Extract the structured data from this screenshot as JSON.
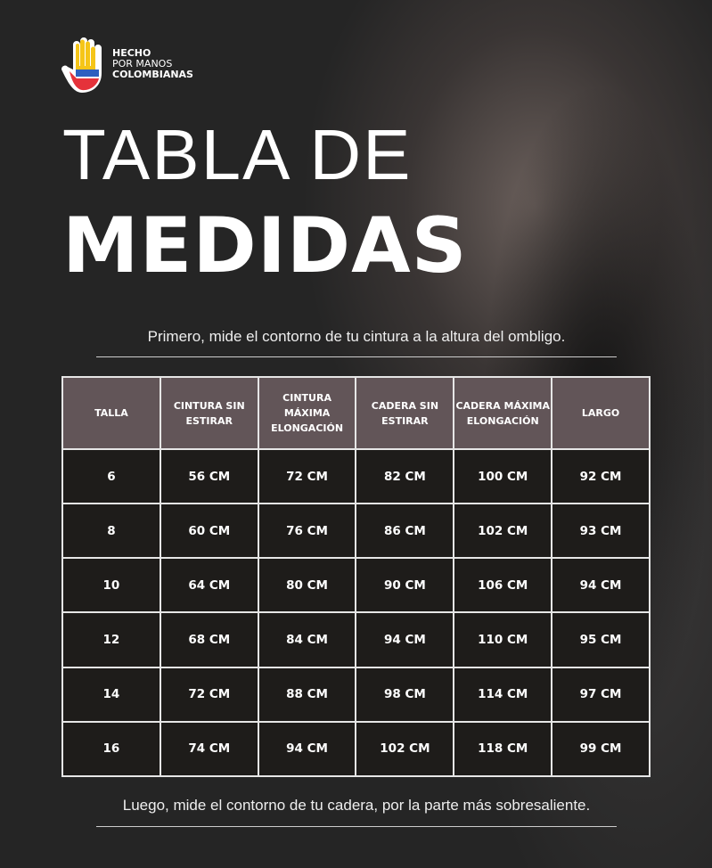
{
  "logo": {
    "line1": "HECHO",
    "line2": "POR MANOS",
    "line3": "COLOMBIANAS"
  },
  "title": {
    "line1": "TABLA DE",
    "line2": "MEDIDAS"
  },
  "note_top": "Primero, mide  el contorno de tu cintura a la altura del ombligo.",
  "note_bottom": "Luego, mide el contorno de tu cadera, por la parte más sobresaliente.",
  "colors": {
    "header": "#625558",
    "cell": "#1e1c1a",
    "background": "#252525"
  },
  "table": {
    "headers": [
      "TALLA",
      "CINTURA SIN ESTIRAR",
      "CINTURA MÁXIMA ELONGACIÓN",
      "CADERA SIN ESTIRAR",
      "CADERA MÁXIMA ELONGACIÓN",
      "LARGO"
    ],
    "rows": [
      [
        "6",
        "56 CM",
        "72 CM",
        "82 CM",
        "100 CM",
        "92 CM"
      ],
      [
        "8",
        "60 CM",
        "76 CM",
        "86 CM",
        "102 CM",
        "93 CM"
      ],
      [
        "10",
        "64 CM",
        "80 CM",
        "90 CM",
        "106 CM",
        "94 CM"
      ],
      [
        "12",
        "68 CM",
        "84 CM",
        "94 CM",
        "110 CM",
        "95 CM"
      ],
      [
        "14",
        "72 CM",
        "88 CM",
        "98 CM",
        "114 CM",
        "97 CM"
      ],
      [
        "16",
        "74 CM",
        "94 CM",
        "102 CM",
        "118 CM",
        "99 CM"
      ]
    ]
  }
}
